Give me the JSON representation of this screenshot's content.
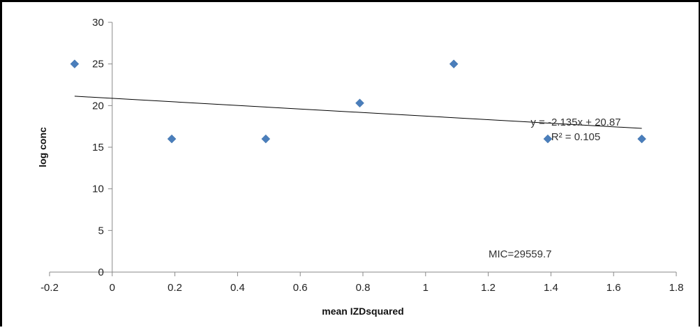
{
  "chart_data": {
    "type": "scatter",
    "xlabel": "mean IZDsquared",
    "ylabel": "log conc",
    "xlim": [
      -0.2,
      1.8
    ],
    "ylim": [
      0,
      30
    ],
    "xticks": [
      "-0.2",
      "0",
      "0.2",
      "0.4",
      "0.6",
      "0.8",
      "1",
      "1.2",
      "1.4",
      "1.6",
      "1.8"
    ],
    "yticks": [
      "0",
      "5",
      "10",
      "15",
      "20",
      "25",
      "30"
    ],
    "points": [
      {
        "x": -0.12,
        "y": 25
      },
      {
        "x": 0.19,
        "y": 16
      },
      {
        "x": 0.49,
        "y": 16
      },
      {
        "x": 0.79,
        "y": 20.3
      },
      {
        "x": 1.09,
        "y": 25
      },
      {
        "x": 1.39,
        "y": 16
      },
      {
        "x": 1.69,
        "y": 16
      }
    ],
    "trendline": {
      "slope": -2.135,
      "intercept": 20.87,
      "x_range": [
        -0.12,
        1.69
      ]
    },
    "marker_color": "#4a7ebb",
    "trendline_color": "#000000",
    "grid": false,
    "annotations": {
      "equation": "y = -2.135x + 20.87",
      "r_squared": "R² = 0.105",
      "mic": "MIC=29559.7"
    }
  }
}
